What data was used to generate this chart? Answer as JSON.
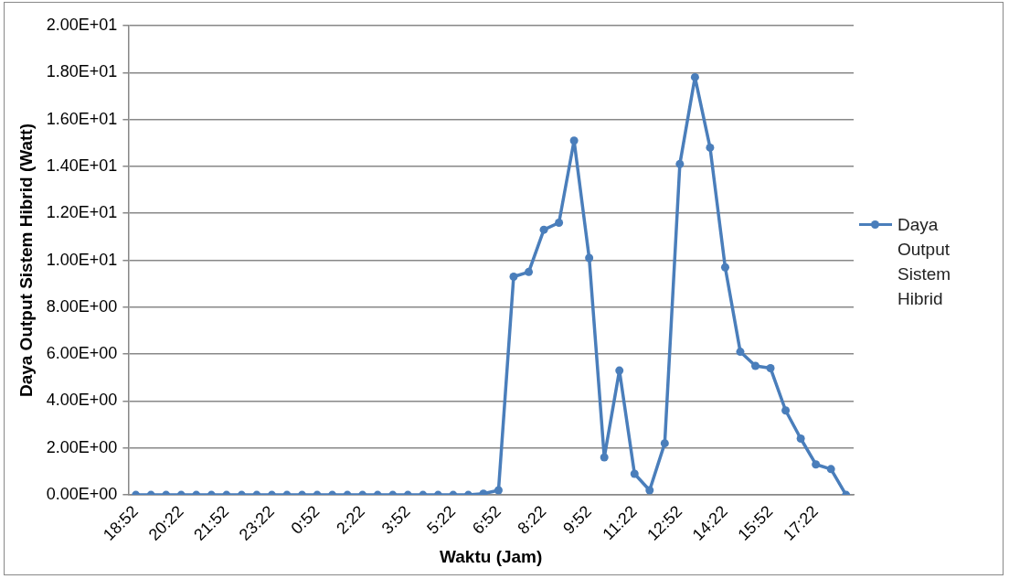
{
  "chart_data": {
    "type": "line",
    "xlabel": "Waktu (Jam)",
    "ylabel": "Daya Output Sistem Hibrid (Watt)",
    "categories": [
      "18:52",
      null,
      null,
      "20:22",
      null,
      null,
      "21:52",
      null,
      null,
      "23:22",
      null,
      null,
      "0:52",
      null,
      null,
      "2:22",
      null,
      null,
      "3:52",
      null,
      null,
      "5:22",
      null,
      null,
      "6:52",
      null,
      null,
      "8:22",
      null,
      null,
      "9:52",
      null,
      null,
      "11:22",
      null,
      null,
      "12:52",
      null,
      null,
      "14:22",
      null,
      null,
      "15:52",
      null,
      null,
      "17:22",
      null,
      null
    ],
    "series": [
      {
        "name": "Daya Output Sistem Hibrid",
        "color": "#4a7ebb",
        "values": [
          0,
          0,
          0,
          0,
          0,
          0,
          0,
          0,
          0,
          0,
          0,
          0,
          0,
          0,
          0,
          0,
          0,
          0,
          0,
          0,
          0,
          0,
          0,
          0.05,
          0.2,
          9.3,
          9.5,
          11.3,
          11.6,
          15.1,
          10.1,
          1.6,
          5.3,
          0.9,
          0.2,
          2.2,
          14.1,
          17.8,
          14.8,
          9.7,
          6.1,
          5.5,
          5.4,
          3.6,
          2.4,
          1.3,
          1.1,
          0
        ]
      }
    ],
    "ylim": [
      0,
      20
    ],
    "yticks": [
      {
        "value": 0,
        "label": "0.00E+00"
      },
      {
        "value": 2,
        "label": "2.00E+00"
      },
      {
        "value": 4,
        "label": "4.00E+00"
      },
      {
        "value": 6,
        "label": "6.00E+00"
      },
      {
        "value": 8,
        "label": "8.00E+00"
      },
      {
        "value": 10,
        "label": "1.00E+01"
      },
      {
        "value": 12,
        "label": "1.20E+01"
      },
      {
        "value": 14,
        "label": "1.40E+01"
      },
      {
        "value": 16,
        "label": "1.60E+01"
      },
      {
        "value": 18,
        "label": "1.80E+01"
      },
      {
        "value": 20,
        "label": "2.00E+01"
      }
    ],
    "grid": "y",
    "legend": "right",
    "marker": "circle",
    "line_style": "solid"
  }
}
